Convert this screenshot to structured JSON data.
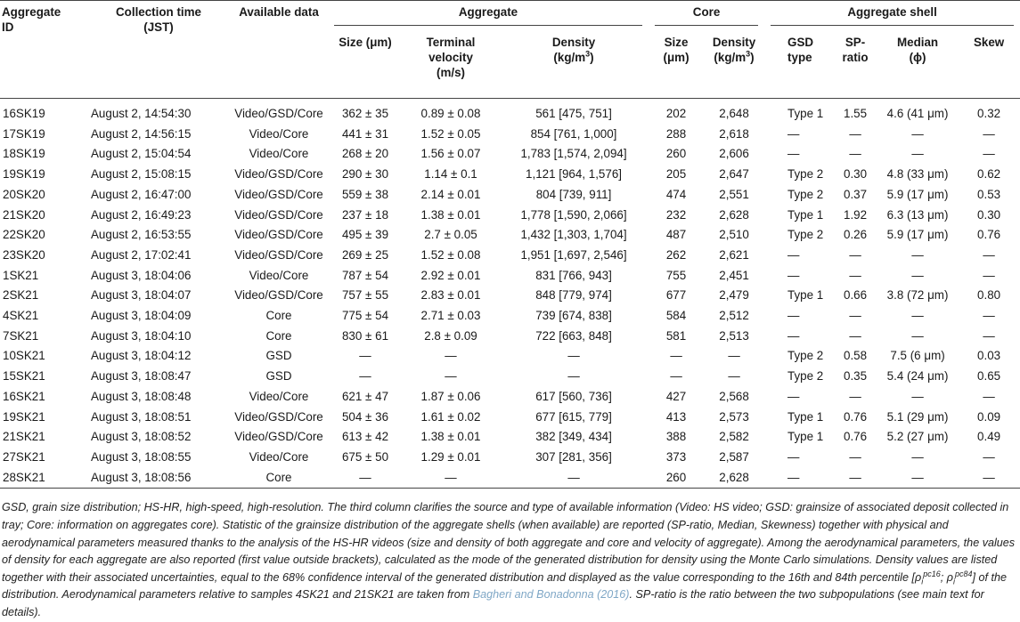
{
  "table": {
    "groups": [
      "Aggregate",
      "Core",
      "Aggregate shell"
    ],
    "columns": [
      "Aggregate ID",
      "Collection time (JST)",
      "Available data",
      "Size (μm)",
      "Terminal velocity (m/s)",
      [
        "Density (kg/m",
        "3",
        ")"
      ],
      "Size (μm)",
      [
        "Density (kg/m",
        "3",
        ")"
      ],
      "GSD type",
      "SP-ratio",
      "Median (ϕ)",
      "Skew"
    ],
    "rows": [
      [
        "16SK19",
        "August 2, 14:54:30",
        "Video/GSD/Core",
        "362 ± 35",
        "0.89 ± 0.08",
        "561 [475, 751]",
        "202",
        "2,648",
        "Type 1",
        "1.55",
        "4.6 (41 μm)",
        "0.32"
      ],
      [
        "17SK19",
        "August 2, 14:56:15",
        "Video/Core",
        "441 ± 31",
        "1.52 ± 0.05",
        "854 [761, 1,000]",
        "288",
        "2,618",
        "—",
        "—",
        "—",
        "—"
      ],
      [
        "18SK19",
        "August 2, 15:04:54",
        "Video/Core",
        "268 ± 20",
        "1.56 ± 0.07",
        "1,783 [1,574, 2,094]",
        "260",
        "2,606",
        "—",
        "—",
        "—",
        "—"
      ],
      [
        "19SK19",
        "August 2, 15:08:15",
        "Video/GSD/Core",
        "290 ± 30",
        "1.14 ± 0.1",
        "1,121 [964, 1,576]",
        "205",
        "2,647",
        "Type 2",
        "0.30",
        "4.8 (33 μm)",
        "0.62"
      ],
      [
        "20SK20",
        "August 2, 16:47:00",
        "Video/GSD/Core",
        "559 ± 38",
        "2.14 ± 0.01",
        "804 [739, 911]",
        "474",
        "2,551",
        "Type 2",
        "0.37",
        "5.9 (17 μm)",
        "0.53"
      ],
      [
        "21SK20",
        "August 2, 16:49:23",
        "Video/GSD/Core",
        "237 ± 18",
        "1.38 ± 0.01",
        "1,778 [1,590, 2,066]",
        "232",
        "2,628",
        "Type 1",
        "1.92",
        "6.3 (13 μm)",
        "0.30"
      ],
      [
        "22SK20",
        "August 2, 16:53:55",
        "Video/GSD/Core",
        "495 ± 39",
        "2.7 ± 0.05",
        "1,432 [1,303, 1,704]",
        "487",
        "2,510",
        "Type 2",
        "0.26",
        "5.9 (17 μm)",
        "0.76"
      ],
      [
        "23SK20",
        "August 2, 17:02:41",
        "Video/GSD/Core",
        "269 ± 25",
        "1.52 ± 0.08",
        "1,951 [1,697, 2,546]",
        "262",
        "2,621",
        "—",
        "—",
        "—",
        "—"
      ],
      [
        "1SK21",
        "August 3, 18:04:06",
        "Video/Core",
        "787 ± 54",
        "2.92 ± 0.01",
        "831 [766, 943]",
        "755",
        "2,451",
        "—",
        "—",
        "—",
        "—"
      ],
      [
        "2SK21",
        "August 3, 18:04:07",
        "Video/GSD/Core",
        "757 ± 55",
        "2.83 ± 0.01",
        "848 [779, 974]",
        "677",
        "2,479",
        "Type 1",
        "0.66",
        "3.8 (72 μm)",
        "0.80"
      ],
      [
        "4SK21",
        "August 3, 18:04:09",
        "Core",
        "775 ± 54",
        "2.71 ± 0.03",
        "739 [674, 838]",
        "584",
        "2,512",
        "—",
        "—",
        "—",
        "—"
      ],
      [
        "7SK21",
        "August 3, 18:04:10",
        "Core",
        "830 ± 61",
        "2.8 ± 0.09",
        "722 [663, 848]",
        "581",
        "2,513",
        "—",
        "—",
        "—",
        "—"
      ],
      [
        "10SK21",
        "August 3, 18:04:12",
        "GSD",
        "—",
        "—",
        "—",
        "—",
        "—",
        "Type 2",
        "0.58",
        "7.5 (6 μm)",
        "0.03"
      ],
      [
        "15SK21",
        "August 3, 18:08:47",
        "GSD",
        "—",
        "—",
        "—",
        "—",
        "—",
        "Type 2",
        "0.35",
        "5.4 (24 μm)",
        "0.65"
      ],
      [
        "16SK21",
        "August 3, 18:08:48",
        "Video/Core",
        "621 ± 47",
        "1.87 ± 0.06",
        "617 [560, 736]",
        "427",
        "2,568",
        "—",
        "—",
        "—",
        "—"
      ],
      [
        "19SK21",
        "August 3, 18:08:51",
        "Video/GSD/Core",
        "504 ± 36",
        "1.61 ± 0.02",
        "677 [615, 779]",
        "413",
        "2,573",
        "Type 1",
        "0.76",
        "5.1 (29 μm)",
        "0.09"
      ],
      [
        "21SK21",
        "August 3, 18:08:52",
        "Video/GSD/Core",
        "613 ± 42",
        "1.38 ± 0.01",
        "382 [349, 434]",
        "388",
        "2,582",
        "Type 1",
        "0.76",
        "5.2 (27 μm)",
        "0.49"
      ],
      [
        "27SK21",
        "August 3, 18:08:55",
        "Video/Core",
        "675 ± 50",
        "1.29 ± 0.01",
        "307 [281, 356]",
        "373",
        "2,587",
        "—",
        "—",
        "—",
        "—"
      ],
      [
        "28SK21",
        "August 3, 18:08:56",
        "Core",
        "—",
        "—",
        "—",
        "260",
        "2,628",
        "—",
        "—",
        "—",
        "—"
      ]
    ]
  },
  "footnote": [
    "GSD, grain size distribution; HS-HR, high-speed, high-resolution. The third column clarifies the source and type of available information (Video: HS video; GSD: grainsize of associated deposit collected in tray; Core: information on aggregates core). Statistic of the grainsize distribution of the aggregate shells (when available) are reported (SP-ratio, Median, Skewness) together with physical and aerodynamical parameters measured thanks to the analysis of the HS-HR videos (size and density of both aggregate and core and velocity of aggregate). Among the aerodynamical parameters, the values of density for each aggregate are also reported (first value outside brackets), calculated as the mode of the generated distribution for density using the Monte Carlo simulations. Density values are listed together with their associated uncertainties, equal to the 68% confidence interval of the generated distribution and displayed as the value corresponding to the 16th and 84th percentile [",
    "ρ",
    "i",
    "pc16",
    "; ",
    "ρ",
    "i",
    "pc84",
    "] of the distribution. Aerodynamical parameters relative to samples 4SK21 and 21SK21 are taken from ",
    "Bagheri and Bonadonna (2016)",
    ". SP-ratio is the ratio between the two subpopulations (see main text for details)."
  ]
}
